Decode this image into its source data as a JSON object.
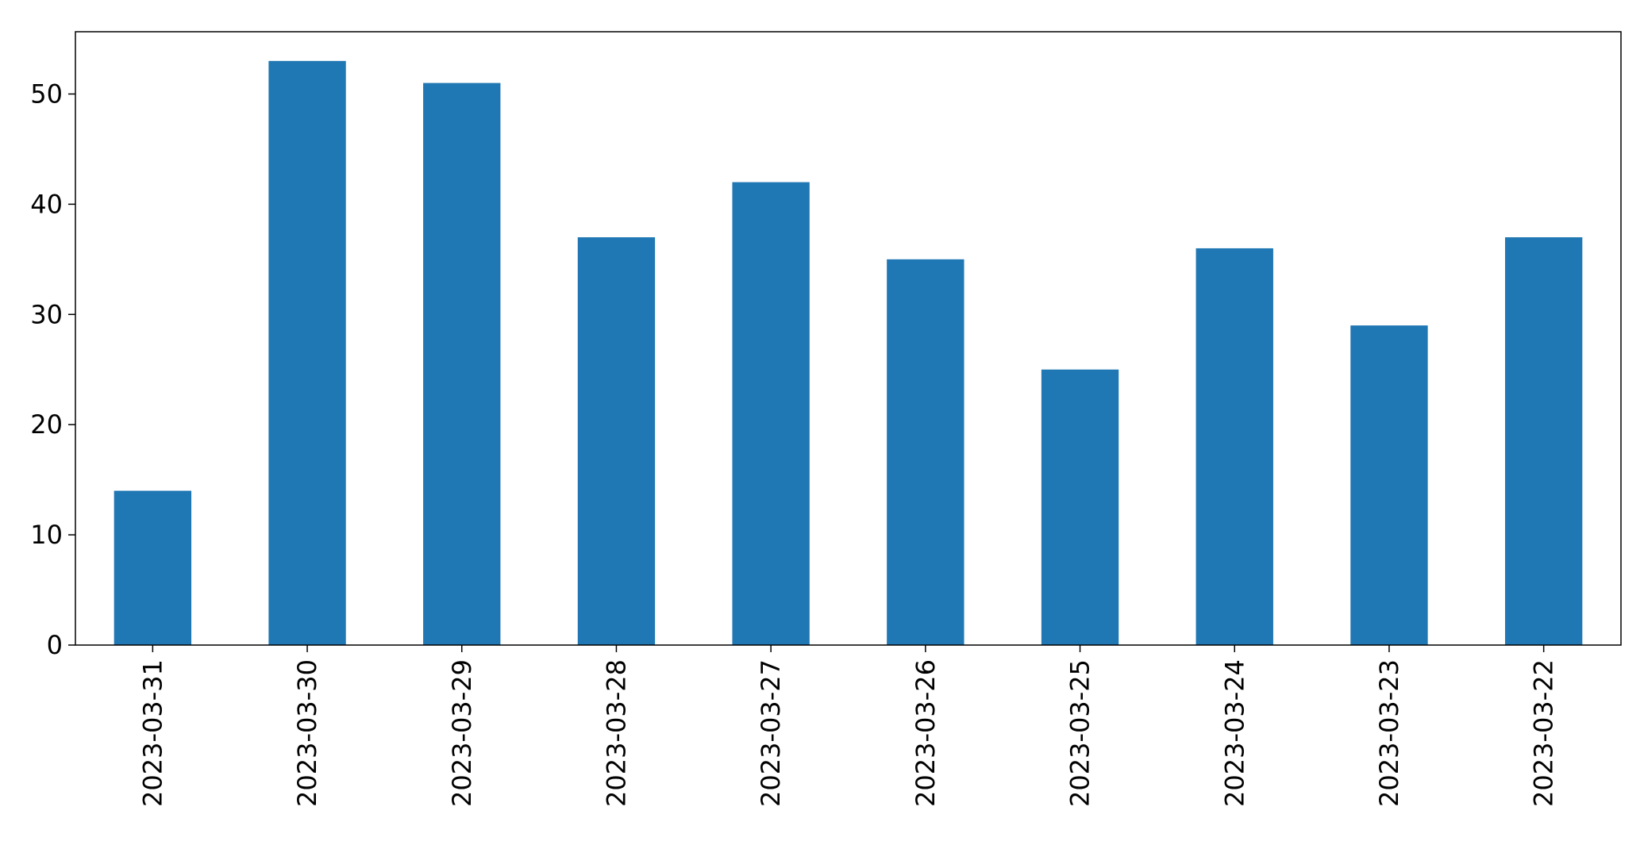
{
  "chart_data": {
    "type": "bar",
    "title": "",
    "xlabel": "",
    "ylabel": "",
    "categories": [
      "2023-03-31",
      "2023-03-30",
      "2023-03-29",
      "2023-03-28",
      "2023-03-27",
      "2023-03-26",
      "2023-03-25",
      "2023-03-24",
      "2023-03-23",
      "2023-03-22"
    ],
    "values": [
      14,
      53,
      51,
      37,
      42,
      35,
      25,
      36,
      29,
      37
    ],
    "ylim": [
      0,
      55.65
    ],
    "yticks": [
      0,
      10,
      20,
      30,
      40,
      50
    ],
    "grid": false,
    "legend": "none",
    "bar_color": "#1f77b4",
    "axis_color": "#000000"
  }
}
